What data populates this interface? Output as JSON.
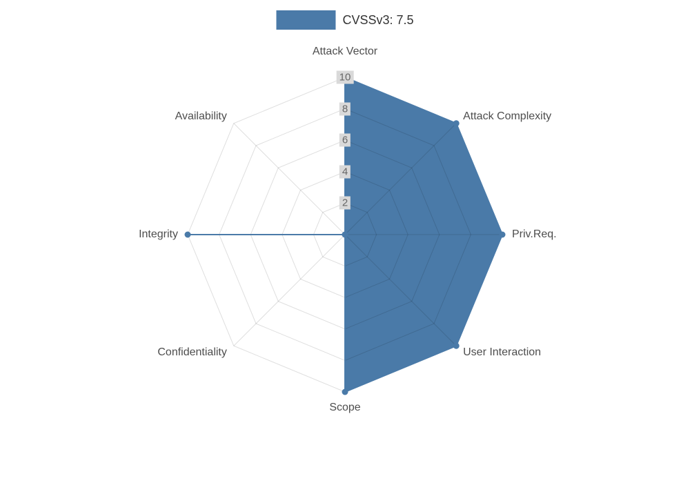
{
  "legend": {
    "label": "CVSSv3: 7.5"
  },
  "colors": {
    "series": "#4a7aa8",
    "grid": "rgba(0,0,0,0.13)",
    "tick_bg": "#d9d9d9",
    "tick_text": "#666666",
    "axis_label": "#4d4d4d",
    "title_text": "#333333"
  },
  "chart_data": {
    "type": "radar",
    "title": "CVSSv3: 7.5",
    "legend_position": "top",
    "grid": "polygon-web",
    "max": 10,
    "radial_ticks": [
      2,
      4,
      6,
      8,
      10
    ],
    "axes": [
      "Attack Vector",
      "Attack Complexity",
      "Priv.Req.",
      "User Interaction",
      "Scope",
      "Confidentiality",
      "Integrity",
      "Availability"
    ],
    "series": [
      {
        "name": "CVSSv3: 7.5",
        "color": "#4a7aa8",
        "values": [
          10,
          10,
          10,
          10,
          10,
          0,
          10,
          0
        ]
      }
    ]
  }
}
